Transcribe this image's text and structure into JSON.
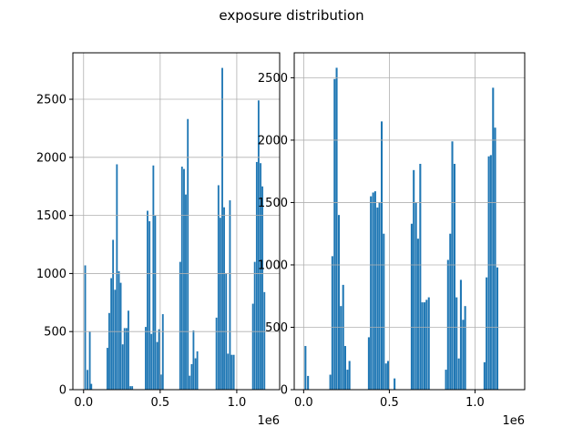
{
  "figure": {
    "title": "exposure distribution"
  },
  "chart_data": [
    {
      "type": "bar",
      "subtype": "histogram",
      "x_range": [
        -70000,
        1280000
      ],
      "ylim": [
        0,
        2900
      ],
      "grid": true,
      "bar_color": "#1f77b4",
      "x_ticks": [
        0,
        500000,
        1000000
      ],
      "x_tick_labels": [
        "0.0",
        "0.5",
        "1.0"
      ],
      "x_offset_label": "1e6",
      "y_ticks": [
        0,
        500,
        1000,
        1500,
        2000,
        2500
      ],
      "y_tick_labels": [
        "0",
        "500",
        "1000",
        "1500",
        "2000",
        "2500"
      ],
      "bins": [
        {
          "x": 5000,
          "y": 1070
        },
        {
          "x": 20000,
          "y": 170
        },
        {
          "x": 35000,
          "y": 500
        },
        {
          "x": 45000,
          "y": 50
        },
        {
          "x": 150000,
          "y": 360
        },
        {
          "x": 162000,
          "y": 660
        },
        {
          "x": 175000,
          "y": 960
        },
        {
          "x": 187000,
          "y": 1290
        },
        {
          "x": 200000,
          "y": 860
        },
        {
          "x": 212000,
          "y": 1940
        },
        {
          "x": 225000,
          "y": 1020
        },
        {
          "x": 237000,
          "y": 920
        },
        {
          "x": 250000,
          "y": 390
        },
        {
          "x": 262000,
          "y": 530
        },
        {
          "x": 275000,
          "y": 530
        },
        {
          "x": 287000,
          "y": 680
        },
        {
          "x": 300000,
          "y": 30
        },
        {
          "x": 312000,
          "y": 30
        },
        {
          "x": 400000,
          "y": 540
        },
        {
          "x": 412000,
          "y": 1540
        },
        {
          "x": 425000,
          "y": 1450
        },
        {
          "x": 437000,
          "y": 480
        },
        {
          "x": 450000,
          "y": 1930
        },
        {
          "x": 462000,
          "y": 1500
        },
        {
          "x": 475000,
          "y": 410
        },
        {
          "x": 487000,
          "y": 520
        },
        {
          "x": 500000,
          "y": 130
        },
        {
          "x": 512000,
          "y": 650
        },
        {
          "x": 625000,
          "y": 1100
        },
        {
          "x": 637000,
          "y": 1920
        },
        {
          "x": 650000,
          "y": 1900
        },
        {
          "x": 662000,
          "y": 1680
        },
        {
          "x": 675000,
          "y": 2330
        },
        {
          "x": 687000,
          "y": 120
        },
        {
          "x": 700000,
          "y": 220
        },
        {
          "x": 712000,
          "y": 510
        },
        {
          "x": 725000,
          "y": 270
        },
        {
          "x": 737000,
          "y": 330
        },
        {
          "x": 862000,
          "y": 620
        },
        {
          "x": 875000,
          "y": 1760
        },
        {
          "x": 887000,
          "y": 1480
        },
        {
          "x": 900000,
          "y": 2770
        },
        {
          "x": 912000,
          "y": 1570
        },
        {
          "x": 925000,
          "y": 1000
        },
        {
          "x": 937000,
          "y": 310
        },
        {
          "x": 950000,
          "y": 1630
        },
        {
          "x": 962000,
          "y": 300
        },
        {
          "x": 975000,
          "y": 300
        },
        {
          "x": 1100000,
          "y": 740
        },
        {
          "x": 1112000,
          "y": 1100
        },
        {
          "x": 1125000,
          "y": 1960
        },
        {
          "x": 1137000,
          "y": 2490
        },
        {
          "x": 1150000,
          "y": 1950
        },
        {
          "x": 1162000,
          "y": 1750
        },
        {
          "x": 1175000,
          "y": 840
        }
      ]
    },
    {
      "type": "bar",
      "subtype": "histogram",
      "x_range": [
        -55000,
        1290000
      ],
      "ylim": [
        0,
        2700
      ],
      "grid": true,
      "bar_color": "#1f77b4",
      "x_ticks": [
        0,
        500000,
        1000000
      ],
      "x_tick_labels": [
        "0.0",
        "0.5",
        "1.0"
      ],
      "x_offset_label": "1e6",
      "y_ticks": [
        0,
        500,
        1000,
        1500,
        2000,
        2500
      ],
      "y_tick_labels": [
        "0",
        "500",
        "1000",
        "1500",
        "2000",
        "2500"
      ],
      "bins": [
        {
          "x": 5000,
          "y": 350
        },
        {
          "x": 20000,
          "y": 110
        },
        {
          "x": 150000,
          "y": 120
        },
        {
          "x": 162000,
          "y": 1070
        },
        {
          "x": 175000,
          "y": 2490
        },
        {
          "x": 187000,
          "y": 2580
        },
        {
          "x": 200000,
          "y": 1400
        },
        {
          "x": 212000,
          "y": 670
        },
        {
          "x": 225000,
          "y": 840
        },
        {
          "x": 237000,
          "y": 350
        },
        {
          "x": 250000,
          "y": 160
        },
        {
          "x": 262000,
          "y": 230
        },
        {
          "x": 375000,
          "y": 420
        },
        {
          "x": 387000,
          "y": 1550
        },
        {
          "x": 400000,
          "y": 1580
        },
        {
          "x": 412000,
          "y": 1590
        },
        {
          "x": 425000,
          "y": 1460
        },
        {
          "x": 437000,
          "y": 1500
        },
        {
          "x": 450000,
          "y": 2150
        },
        {
          "x": 462000,
          "y": 1250
        },
        {
          "x": 475000,
          "y": 210
        },
        {
          "x": 487000,
          "y": 230
        },
        {
          "x": 525000,
          "y": 90
        },
        {
          "x": 625000,
          "y": 1330
        },
        {
          "x": 637000,
          "y": 1760
        },
        {
          "x": 650000,
          "y": 1500
        },
        {
          "x": 662000,
          "y": 1210
        },
        {
          "x": 675000,
          "y": 1810
        },
        {
          "x": 687000,
          "y": 700
        },
        {
          "x": 700000,
          "y": 700
        },
        {
          "x": 712000,
          "y": 720
        },
        {
          "x": 725000,
          "y": 740
        },
        {
          "x": 825000,
          "y": 160
        },
        {
          "x": 837000,
          "y": 1040
        },
        {
          "x": 850000,
          "y": 1250
        },
        {
          "x": 862000,
          "y": 1990
        },
        {
          "x": 875000,
          "y": 1810
        },
        {
          "x": 887000,
          "y": 740
        },
        {
          "x": 900000,
          "y": 250
        },
        {
          "x": 912000,
          "y": 880
        },
        {
          "x": 925000,
          "y": 560
        },
        {
          "x": 937000,
          "y": 670
        },
        {
          "x": 1050000,
          "y": 220
        },
        {
          "x": 1062000,
          "y": 900
        },
        {
          "x": 1075000,
          "y": 1870
        },
        {
          "x": 1087000,
          "y": 1880
        },
        {
          "x": 1100000,
          "y": 2420
        },
        {
          "x": 1112000,
          "y": 2100
        },
        {
          "x": 1125000,
          "y": 980
        }
      ]
    }
  ]
}
